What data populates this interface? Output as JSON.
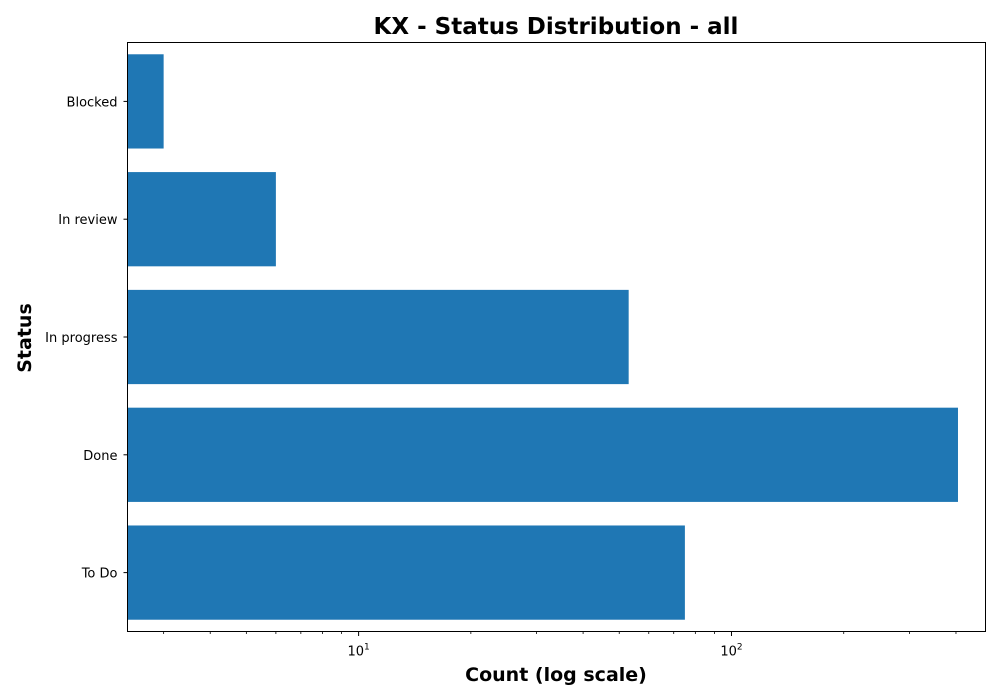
{
  "chart_data": {
    "type": "bar",
    "orientation": "horizontal",
    "title": "KX - Status Distribution - all",
    "xlabel": "Count (log scale)",
    "ylabel": "Status",
    "x_scale": "log",
    "xlim": [
      2.4,
      480
    ],
    "x_ticks": [
      {
        "value": 10,
        "base": "10",
        "exp": "1"
      },
      {
        "value": 100,
        "base": "10",
        "exp": "2"
      }
    ],
    "categories": [
      "To Do",
      "Done",
      "In progress",
      "In review",
      "Blocked"
    ],
    "values": [
      75,
      405,
      53,
      6,
      3
    ],
    "bar_color": "#1f77b4",
    "grid": false,
    "legend": "none"
  }
}
